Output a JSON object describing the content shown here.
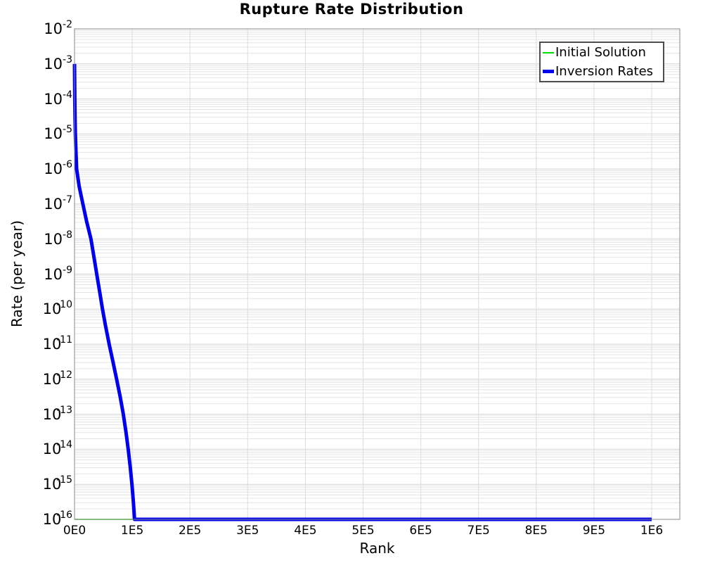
{
  "title": "Rupture Rate Distribution",
  "colors": {
    "initial_solution": "#00dd00",
    "inversion_rates": "#0000ee",
    "grid_minor": "#e4e4e4",
    "grid_major": "#d2d2d2",
    "grid_vertical": "#dcdcdc",
    "plot_border": "#888888",
    "legend_border": "#4d4d4d",
    "text": "#000000"
  },
  "axes": {
    "x": {
      "label": "Rank",
      "tick_labels": [
        "0E0",
        "1E5",
        "2E5",
        "3E5",
        "4E5",
        "5E5",
        "6E5",
        "7E5",
        "8E5",
        "9E5",
        "1E6"
      ],
      "tick_values": [
        0,
        100000,
        200000,
        300000,
        400000,
        500000,
        600000,
        700000,
        800000,
        900000,
        1000000
      ],
      "min": 0,
      "max": 1050000,
      "scale": "linear"
    },
    "y": {
      "label": "Rate (per year)",
      "tick_exponents": [
        -2,
        -3,
        -4,
        -5,
        -6,
        -7,
        -8,
        -9,
        -10,
        -11,
        -12,
        -13,
        -14,
        -15,
        -16
      ],
      "min": 1e-16,
      "max": 0.01,
      "scale": "log"
    }
  },
  "legend": {
    "items": [
      {
        "label": "Initial Solution",
        "color": "#00dd00",
        "thickness": 2
      },
      {
        "label": "Inversion Rates",
        "color": "#0000ee",
        "thickness": 5
      }
    ]
  },
  "chart_data": {
    "type": "line",
    "title": "Rupture Rate Distribution",
    "xlabel": "Rank",
    "ylabel": "Rate (per year)",
    "xlim": [
      0,
      1050000
    ],
    "ylim": [
      1e-16,
      0.01
    ],
    "yscale": "log",
    "grid": true,
    "legend_position": "top-right",
    "series": [
      {
        "name": "Initial Solution",
        "color": "#00dd00",
        "width": 1.5,
        "points": [
          [
            0,
            1e-16
          ],
          [
            1000000,
            1e-16
          ]
        ]
      },
      {
        "name": "Inversion Rates",
        "color": "#0000ee",
        "width": 5,
        "points": [
          [
            0,
            0.001
          ],
          [
            200,
            0.00032
          ],
          [
            500,
            0.0001
          ],
          [
            900,
            3.2e-05
          ],
          [
            1500,
            1e-05
          ],
          [
            2400,
            3.2e-06
          ],
          [
            3700,
            1e-06
          ],
          [
            8000,
            3.2e-07
          ],
          [
            14500,
            1e-07
          ],
          [
            21000,
            3.2e-08
          ],
          [
            28500,
            1e-08
          ],
          [
            33500,
            3.2e-09
          ],
          [
            38500,
            1e-09
          ],
          [
            43500,
            3.2e-10
          ],
          [
            48500,
            1e-10
          ],
          [
            54000,
            3.2e-11
          ],
          [
            60000,
            1e-11
          ],
          [
            66500,
            3.2e-12
          ],
          [
            73000,
            1e-12
          ],
          [
            79000,
            3.2e-13
          ],
          [
            84500,
            1e-13
          ],
          [
            89000,
            3.2e-14
          ],
          [
            93000,
            1e-14
          ],
          [
            96500,
            3.2e-15
          ],
          [
            99500,
            1e-15
          ],
          [
            102000,
            3.2e-16
          ],
          [
            104000,
            1e-16
          ],
          [
            1000000,
            1e-16
          ]
        ]
      }
    ]
  }
}
